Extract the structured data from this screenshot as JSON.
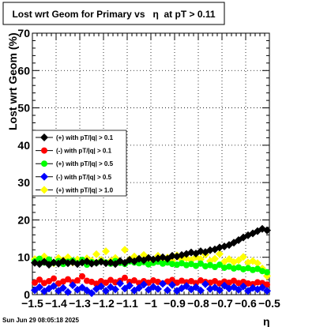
{
  "title": "Lost wrt Geom for Primary vs   η  at pT > 0.11",
  "footer_timestamp": "Sun Jun 29 08:05:18 2025",
  "colors": {
    "black": "#000000",
    "red": "#ff0000",
    "green": "#00ff00",
    "blue": "#0000ff",
    "yellow": "#ffff00"
  },
  "chart_data": {
    "type": "scatter",
    "title": "Lost wrt Geom for Primary vs   η  at pT > 0.11",
    "xlabel": "η",
    "ylabel": "Lost wrt Geom (%)",
    "xlim": [
      -1.5,
      -0.5
    ],
    "ylim": [
      0,
      70
    ],
    "x_ticks": [
      -1.5,
      -1.4,
      -1.3,
      -1.2,
      -1.1,
      -1.0,
      -0.9,
      -0.8,
      -0.7,
      -0.6,
      -0.5
    ],
    "x_tick_labels": [
      "−1.5",
      "−1.4",
      "−1.3",
      "−1.2",
      "−1.1",
      "−1",
      "−0.9",
      "−0.8",
      "−0.7",
      "−0.6",
      "−0.5"
    ],
    "y_ticks": [
      0,
      10,
      20,
      30,
      40,
      50,
      60,
      70
    ],
    "y_tick_labels": [
      "0",
      "10",
      "20",
      "30",
      "40",
      "50",
      "60",
      "70"
    ],
    "grid": true,
    "legend_position": "left-middle",
    "x": [
      -1.49,
      -1.47,
      -1.45,
      -1.43,
      -1.41,
      -1.39,
      -1.37,
      -1.35,
      -1.33,
      -1.31,
      -1.29,
      -1.27,
      -1.25,
      -1.23,
      -1.21,
      -1.19,
      -1.17,
      -1.15,
      -1.13,
      -1.11,
      -1.09,
      -1.07,
      -1.05,
      -1.03,
      -1.01,
      -0.99,
      -0.97,
      -0.95,
      -0.93,
      -0.91,
      -0.89,
      -0.87,
      -0.85,
      -0.83,
      -0.81,
      -0.79,
      -0.77,
      -0.75,
      -0.73,
      -0.71,
      -0.69,
      -0.67,
      -0.65,
      -0.63,
      -0.61,
      -0.59,
      -0.57,
      -0.55,
      -0.53,
      -0.51
    ],
    "series": [
      {
        "name": "(+) with pT/|q| > 0.1",
        "color": "#000000",
        "marker": "diamond",
        "values": [
          8.5,
          8.2,
          8.8,
          8.0,
          8.6,
          8.3,
          9.0,
          8.4,
          8.7,
          8.2,
          8.6,
          8.9,
          8.3,
          8.5,
          8.8,
          8.4,
          8.6,
          8.2,
          9.0,
          8.5,
          9.3,
          8.9,
          9.6,
          9.2,
          9.8,
          9.4,
          9.7,
          10.0,
          9.6,
          10.4,
          10.2,
          10.6,
          10.9,
          11.3,
          11.0,
          11.6,
          11.4,
          11.9,
          12.1,
          12.6,
          12.9,
          13.3,
          13.9,
          14.6,
          15.3,
          15.9,
          16.4,
          17.0,
          17.6,
          17.2
        ]
      },
      {
        "name": "(-) with pT/|q| > 0.1",
        "color": "#ff0000",
        "marker": "circle",
        "values": [
          3.2,
          4.0,
          3.1,
          3.6,
          4.3,
          3.0,
          3.5,
          4.1,
          3.3,
          3.8,
          4.9,
          3.7,
          3.4,
          2.9,
          3.6,
          3.2,
          3.9,
          3.3,
          3.7,
          4.5,
          3.4,
          3.8,
          3.1,
          3.6,
          3.2,
          3.8,
          3.4,
          3.0,
          3.5,
          3.9,
          3.2,
          3.7,
          3.3,
          3.6,
          3.1,
          3.8,
          3.4,
          3.2,
          3.6,
          3.0,
          3.5,
          3.2,
          3.7,
          3.1,
          3.4,
          3.0,
          2.8,
          3.3,
          3.1,
          2.7
        ]
      },
      {
        "name": "(+) with pT/|q| > 0.5",
        "color": "#00ff00",
        "marker": "circle",
        "values": [
          8.9,
          9.6,
          8.6,
          9.4,
          8.5,
          9.0,
          8.2,
          8.8,
          9.1,
          8.4,
          9.3,
          8.0,
          8.7,
          8.5,
          8.9,
          8.6,
          8.3,
          9.0,
          8.5,
          8.2,
          8.9,
          8.6,
          8.4,
          8.7,
          8.1,
          8.5,
          8.8,
          8.3,
          8.6,
          8.2,
          8.0,
          8.4,
          7.9,
          8.2,
          7.7,
          8.3,
          7.6,
          7.9,
          7.4,
          8.0,
          7.2,
          7.5,
          7.0,
          7.3,
          6.8,
          7.1,
          6.6,
          6.9,
          6.3,
          6.0
        ]
      },
      {
        "name": "(-) with pT/|q| > 0.5",
        "color": "#0000ff",
        "marker": "diamond",
        "values": [
          1.2,
          2.0,
          0.9,
          1.6,
          2.3,
          1.0,
          1.8,
          0.7,
          2.5,
          1.3,
          1.9,
          1.1,
          0.4,
          1.5,
          2.2,
          1.0,
          2.0,
          1.4,
          3.0,
          1.6,
          2.4,
          1.1,
          1.8,
          2.7,
          1.3,
          2.1,
          1.5,
          2.9,
          1.2,
          2.6,
          1.0,
          1.7,
          2.3,
          1.4,
          2.0,
          1.1,
          2.8,
          1.5,
          1.9,
          1.2,
          2.4,
          1.6,
          2.0,
          1.3,
          2.2,
          1.0,
          1.8,
          1.4,
          1.9,
          1.0
        ]
      },
      {
        "name": "(+) with pT/|q| > 1.0",
        "color": "#ffff00",
        "marker": "diamond",
        "values": [
          9.5,
          8.8,
          10.2,
          9.0,
          8.4,
          9.8,
          9.2,
          10.0,
          8.6,
          9.4,
          8.9,
          9.7,
          9.1,
          10.8,
          9.3,
          11.6,
          9.0,
          9.8,
          8.7,
          12.0,
          9.4,
          10.2,
          9.1,
          10.6,
          9.6,
          9.0,
          10.4,
          9.3,
          9.9,
          9.1,
          10.5,
          9.4,
          9.8,
          9.2,
          10.1,
          9.5,
          10.7,
          9.0,
          9.6,
          10.9,
          8.8,
          9.5,
          8.7,
          9.2,
          10.1,
          8.6,
          9.0,
          8.4,
          7.0,
          5.0
        ]
      }
    ]
  }
}
